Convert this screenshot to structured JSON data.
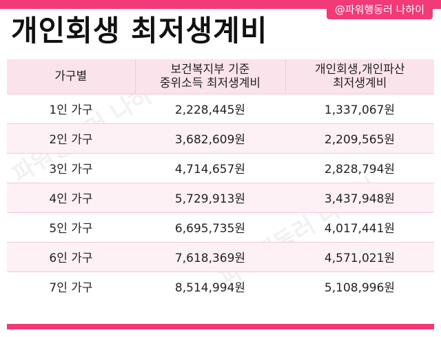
{
  "handle": "@파워행동러 나하이",
  "title": "개인회생 최저생계비",
  "watermark_text": "파워행동러 나하이",
  "table": {
    "headers": [
      {
        "lines": [
          "가구별"
        ]
      },
      {
        "lines": [
          "보건복지부 기준",
          "중위소득 최저생계비"
        ]
      },
      {
        "lines": [
          "개인회생,개인파산",
          "최저생계비"
        ]
      }
    ],
    "rows": [
      [
        "1인 가구",
        "2,228,445원",
        "1,337,067원"
      ],
      [
        "2인 가구",
        "3,682,609원",
        "2,209,565원"
      ],
      [
        "3인 가구",
        "4,714,657원",
        "2,828,794원"
      ],
      [
        "4인 가구",
        "5,729,913원",
        "3,437,948원"
      ],
      [
        "5인 가구",
        "6,695,735원",
        "4,017,441원"
      ],
      [
        "6인 가구",
        "7,618,369원",
        "4,571,021원"
      ],
      [
        "7인 가구",
        "8,514,994원",
        "5,108,996원"
      ]
    ]
  },
  "colors": {
    "accent": "#f23a78",
    "header_bg": "#fbe3ec",
    "row_alt": "#fdf1f5"
  }
}
